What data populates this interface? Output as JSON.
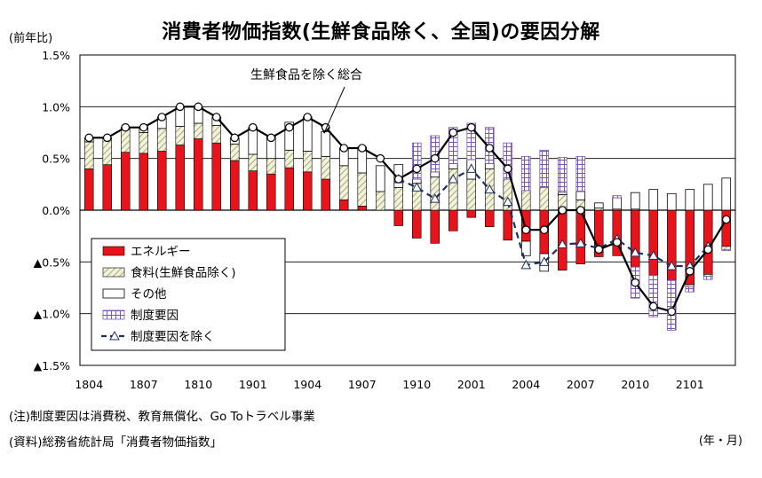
{
  "chart_data": {
    "type": "bar",
    "title": "消費者物価指数(生鮮食品除く、全国)の要因分解",
    "ylabel": "(前年比)",
    "xlabel": "(年・月)",
    "ylim": [
      -1.5,
      1.5
    ],
    "y_ticks": [
      "1.5%",
      "1.0%",
      "0.5%",
      "0.0%",
      "▲0.5%",
      "▲1.0%",
      "▲1.5%"
    ],
    "x_tick_labels": [
      "1804",
      "1807",
      "1810",
      "1901",
      "1904",
      "1907",
      "1910",
      "2001",
      "2004",
      "2007",
      "2010",
      "2101"
    ],
    "categories": [
      "1804",
      "1805",
      "1806",
      "1807",
      "1808",
      "1809",
      "1810",
      "1811",
      "1812",
      "1901",
      "1902",
      "1903",
      "1904",
      "1905",
      "1906",
      "1907",
      "1908",
      "1909",
      "1910",
      "1911",
      "1912",
      "2001",
      "2002",
      "2003",
      "2004",
      "2005",
      "2006",
      "2007",
      "2008",
      "2009",
      "2010",
      "2011",
      "2012",
      "2101",
      "2102",
      "2103"
    ],
    "series": [
      {
        "name": "エネルギー",
        "values": [
          0.4,
          0.44,
          0.56,
          0.55,
          0.57,
          0.63,
          0.69,
          0.65,
          0.48,
          0.38,
          0.35,
          0.41,
          0.37,
          0.3,
          0.1,
          0.04,
          0.0,
          -0.15,
          -0.27,
          -0.32,
          -0.2,
          -0.07,
          -0.16,
          -0.29,
          -0.3,
          -0.42,
          -0.58,
          -0.52,
          -0.45,
          -0.44,
          -0.55,
          -0.63,
          -0.68,
          -0.72,
          -0.62,
          -0.35
        ]
      },
      {
        "name": "食料(生鮮食品除く)",
        "values": [
          0.26,
          0.25,
          0.22,
          0.2,
          0.22,
          0.18,
          0.15,
          0.17,
          0.16,
          0.16,
          0.15,
          0.17,
          0.2,
          0.22,
          0.33,
          0.32,
          0.18,
          0.22,
          0.26,
          0.32,
          0.4,
          0.3,
          0.4,
          0.3,
          0.19,
          0.22,
          0.15,
          0.1,
          0.02,
          0.01,
          0.01,
          0.0,
          0.0,
          -0.02,
          -0.02,
          -0.03
        ]
      },
      {
        "name": "その他",
        "values": [
          0.04,
          0.01,
          0.02,
          0.05,
          0.11,
          0.19,
          0.16,
          0.08,
          0.06,
          0.26,
          0.21,
          0.27,
          0.33,
          0.24,
          0.17,
          0.25,
          0.25,
          0.22,
          0.04,
          0.05,
          0.05,
          0.19,
          0.05,
          0.0,
          -0.14,
          -0.17,
          0.02,
          0.08,
          0.05,
          0.11,
          0.16,
          0.2,
          0.16,
          0.2,
          0.25,
          0.31
        ]
      },
      {
        "name": "制度要因",
        "values": [
          0,
          0,
          0,
          0,
          0,
          0,
          0,
          0,
          0,
          0,
          0,
          0,
          0,
          0,
          0,
          0,
          0,
          0,
          0.35,
          0.35,
          0.35,
          0.35,
          0.35,
          0.35,
          0.33,
          0.36,
          0.34,
          0.34,
          0,
          0.02,
          -0.3,
          -0.4,
          -0.48,
          -0.05,
          -0.03,
          -0.01
        ]
      },
      {
        "name": "制度要因を除く",
        "values": [
          null,
          null,
          null,
          null,
          null,
          null,
          null,
          null,
          null,
          null,
          null,
          null,
          null,
          null,
          null,
          null,
          null,
          0.3,
          0.22,
          0.11,
          0.3,
          0.4,
          0.2,
          0.08,
          -0.53,
          -0.5,
          -0.33,
          -0.32,
          -0.37,
          -0.28,
          -0.41,
          -0.44,
          -0.54,
          -0.54,
          -0.35,
          null
        ]
      },
      {
        "name": "生鮮食品を除く総合",
        "values": [
          0.7,
          0.7,
          0.8,
          0.8,
          0.9,
          1.0,
          1.0,
          0.9,
          0.7,
          0.8,
          0.7,
          0.8,
          0.9,
          0.8,
          0.6,
          0.6,
          0.5,
          0.3,
          0.4,
          0.5,
          0.75,
          0.8,
          0.6,
          0.4,
          -0.19,
          -0.19,
          0.0,
          0.0,
          -0.38,
          -0.31,
          -0.7,
          -0.93,
          -0.98,
          -0.59,
          -0.38,
          -0.09
        ]
      }
    ],
    "annotation": "生鮮食品を除く総合",
    "legend": {
      "placement": "bottom-left"
    },
    "grid": true,
    "colors": {
      "energy": "#e8141b",
      "food_hatch": "#8a9a5b",
      "system": "#7b55b8",
      "line_total": "#000000",
      "line_excl": "#1f2f5f"
    }
  },
  "notes": {
    "note1": "(注)制度要因は消費税、教育無償化、Go Toトラベル事業",
    "note2": "(資料)総務省統計局「消費者物価指数」"
  }
}
